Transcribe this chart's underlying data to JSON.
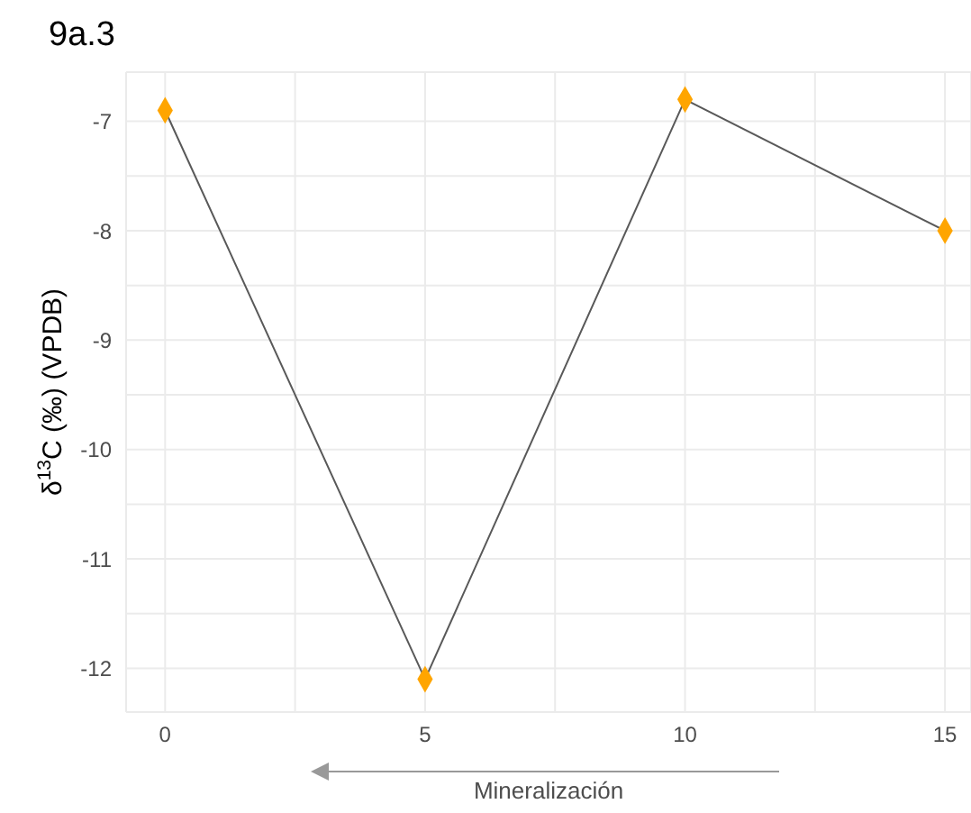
{
  "chart_data": {
    "type": "line",
    "title": "9a.3",
    "xlabel": "Mineralización",
    "ylabel": "δ$^{13}$C (‰) (VPDB)",
    "x": [
      0,
      5,
      10,
      15
    ],
    "series": [
      {
        "color": "#595959",
        "marker": "none",
        "values": [
          -6.9,
          -12.1,
          -6.8,
          -8.0
        ]
      },
      {
        "type": "scatter",
        "color": "#ffa500",
        "marker": "diamond",
        "values": [
          -6.9,
          -12.1,
          -6.8,
          -8.0
        ]
      }
    ],
    "grid": true,
    "xlim": [
      -0.75,
      15.5
    ],
    "xticks": [
      0,
      {
        "value": 2.5,
        "label": null
      },
      5,
      {
        "value": 7.5,
        "label": null
      },
      10,
      {
        "value": 12.5,
        "label": null
      },
      15
    ],
    "ylim": [
      -12.4,
      -6.55
    ],
    "yticks": [
      -12,
      {
        "value": -11.5,
        "label": null
      },
      -11,
      {
        "value": -10.5,
        "label": null
      },
      -10,
      {
        "value": -9.5,
        "label": null
      },
      -9,
      {
        "value": -8.5,
        "label": null
      },
      -8,
      {
        "value": -7.5,
        "label": null
      },
      -7
    ]
  }
}
